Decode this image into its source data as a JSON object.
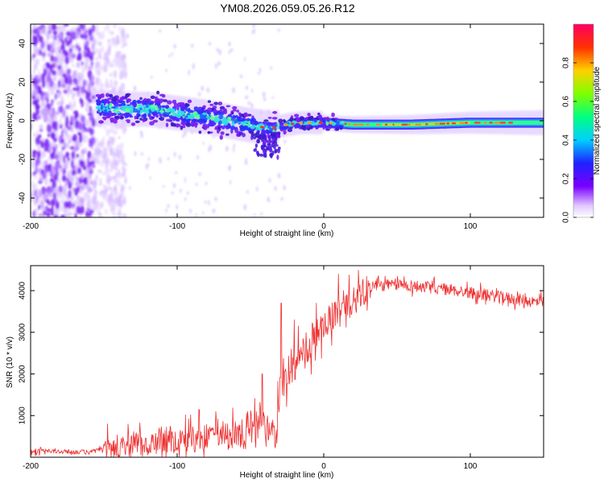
{
  "chart_data": [
    {
      "type": "heatmap",
      "title": "YM08.2026.059.05.26.R12",
      "xlabel": "Height of straight line (km)",
      "ylabel": "Frequency (Hz)",
      "xlim": [
        -200,
        150
      ],
      "ylim": [
        -50,
        50
      ],
      "xticks": [
        -200,
        -100,
        0,
        100
      ],
      "yticks": [
        -40,
        -20,
        0,
        20,
        40
      ],
      "x_tick_labels": [
        "-200",
        "-100",
        "0",
        "100"
      ],
      "y_tick_labels": [
        "-40",
        "-20",
        "0",
        "20",
        "40"
      ],
      "colorbar": {
        "label": "Normalized spectral amplitude",
        "range": [
          0,
          1
        ],
        "ticks": [
          0.0,
          0.2,
          0.4,
          0.6,
          0.8
        ],
        "tick_labels": [
          "0.0",
          "0.2",
          "0.4",
          "0.6",
          "0.8"
        ]
      },
      "ridge_frequency_by_height": [
        [
          -155,
          7
        ],
        [
          -140,
          6
        ],
        [
          -120,
          6
        ],
        [
          -100,
          4
        ],
        [
          -80,
          2
        ],
        [
          -60,
          -1
        ],
        [
          -45,
          -3
        ],
        [
          -35,
          -4
        ],
        [
          -25,
          -2
        ],
        [
          -15,
          -1
        ],
        [
          0,
          -1
        ],
        [
          20,
          -2
        ],
        [
          60,
          -2
        ],
        [
          100,
          -1
        ],
        [
          150,
          -1
        ]
      ],
      "scatter_edge_km": -155,
      "ridge_description": "sparse low-amplitude scatter below -155 km, coherent band from -155 km onwards"
    },
    {
      "type": "line",
      "xlabel": "Height of straight line (km)",
      "ylabel": "SNR (10 * v/v)",
      "xlim": [
        -200,
        150
      ],
      "ylim": [
        0,
        4600
      ],
      "xticks": [
        -200,
        -100,
        0,
        100
      ],
      "yticks": [
        1000,
        2000,
        3000,
        4000
      ],
      "x_tick_labels": [
        "-200",
        "-100",
        "0",
        "100"
      ],
      "y_tick_labels": [
        "1000",
        "2000",
        "3000",
        "4000"
      ],
      "series": [
        {
          "name": "SNR",
          "color": "#ee3030",
          "trend": [
            [
              -200,
              150
            ],
            [
              -160,
              120
            ],
            [
              -150,
              200
            ],
            [
              -130,
              300
            ],
            [
              -110,
              400
            ],
            [
              -100,
              420
            ],
            [
              -80,
              500
            ],
            [
              -60,
              600
            ],
            [
              -40,
              650
            ],
            [
              -32,
              500
            ],
            [
              -30,
              1700
            ],
            [
              -20,
              2200
            ],
            [
              -10,
              2700
            ],
            [
              0,
              3100
            ],
            [
              10,
              3500
            ],
            [
              20,
              3800
            ],
            [
              30,
              4100
            ],
            [
              50,
              4150
            ],
            [
              80,
              4050
            ],
            [
              100,
              3950
            ],
            [
              120,
              3850
            ],
            [
              140,
              3750
            ],
            [
              150,
              3700
            ]
          ],
          "spikes": [
            [
              -42,
              2000
            ],
            [
              -29,
              3700
            ],
            [
              -20,
              3300
            ],
            [
              -5,
              3700
            ],
            [
              10,
              4400
            ],
            [
              13,
              3700
            ]
          ]
        }
      ]
    }
  ],
  "colors": {
    "line": "#ee3030",
    "axis": "#000000",
    "background": "#ffffff"
  }
}
